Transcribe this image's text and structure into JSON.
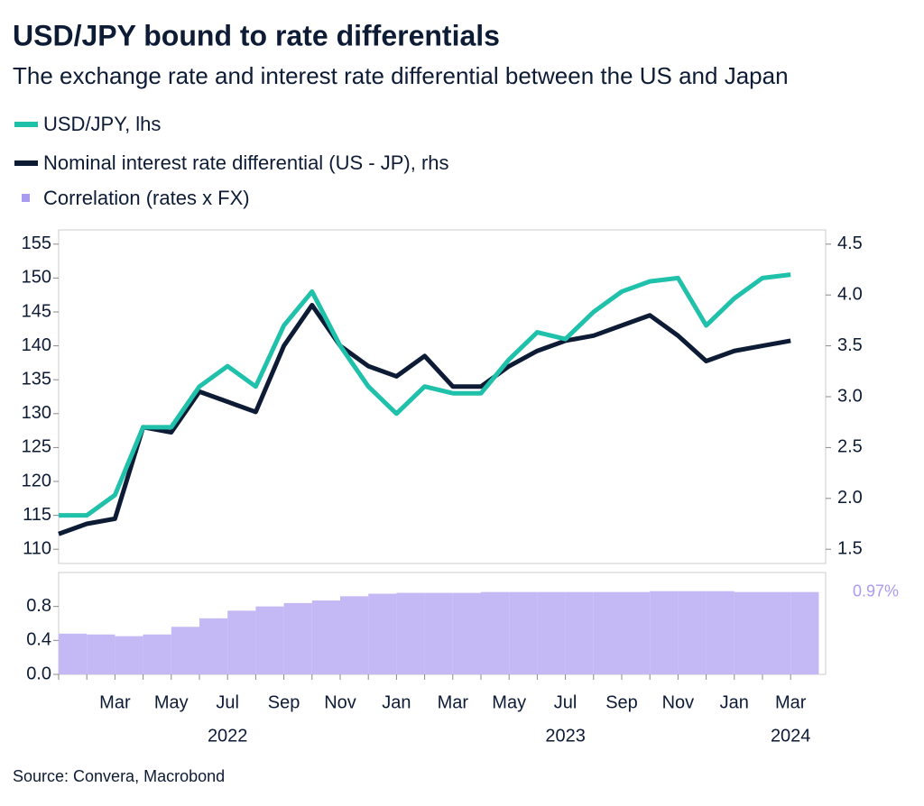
{
  "chart_data": [
    {
      "type": "line",
      "title": "USD/JPY bound to rate differentials",
      "subtitle": "The exchange rate and interest rate differential between the US and Japan",
      "x": [
        "2022-01",
        "2022-02",
        "2022-03",
        "2022-04",
        "2022-05",
        "2022-06",
        "2022-07",
        "2022-08",
        "2022-09",
        "2022-10",
        "2022-11",
        "2022-12",
        "2023-01",
        "2023-02",
        "2023-03",
        "2023-04",
        "2023-05",
        "2023-06",
        "2023-07",
        "2023-08",
        "2023-09",
        "2023-10",
        "2023-11",
        "2023-12",
        "2024-01",
        "2024-02",
        "2024-03"
      ],
      "series": [
        {
          "name": "USD/JPY, lhs",
          "color": "#1fc1aa",
          "axis": "y",
          "values": [
            115,
            115,
            118,
            128,
            128,
            134,
            137,
            134,
            143,
            148,
            140,
            134,
            130,
            134,
            133,
            133,
            138,
            142,
            141,
            145,
            148,
            149.5,
            150,
            143,
            147,
            150,
            150.5
          ]
        },
        {
          "name": "Nominal interest rate differential (US - JP), rhs",
          "color": "#0d1b35",
          "axis": "y2",
          "values": [
            1.65,
            1.75,
            1.8,
            2.7,
            2.65,
            3.05,
            2.95,
            2.85,
            3.5,
            3.9,
            3.5,
            3.3,
            3.2,
            3.4,
            3.1,
            3.1,
            3.3,
            3.45,
            3.55,
            3.6,
            3.7,
            3.8,
            3.6,
            3.35,
            3.45,
            3.5,
            3.55
          ]
        }
      ],
      "ylim": [
        107.9,
        157.1
      ],
      "yticks": [
        110,
        115,
        120,
        125,
        130,
        135,
        140,
        145,
        150,
        155
      ],
      "y2lim": [
        1.36,
        4.64
      ],
      "y2ticks": [
        1.5,
        {
          "value": 2,
          "label": "2.0"
        },
        2.5,
        {
          "value": 3,
          "label": "3.0"
        },
        3.5,
        {
          "value": 4,
          "label": "4.0"
        },
        4.5
      ]
    },
    {
      "type": "bar",
      "x": [
        "2022-01",
        "2022-02",
        "2022-03",
        "2022-04",
        "2022-05",
        "2022-06",
        "2022-07",
        "2022-08",
        "2022-09",
        "2022-10",
        "2022-11",
        "2022-12",
        "2023-01",
        "2023-02",
        "2023-03",
        "2023-04",
        "2023-05",
        "2023-06",
        "2023-07",
        "2023-08",
        "2023-09",
        "2023-10",
        "2023-11",
        "2023-12",
        "2024-01",
        "2024-02",
        "2024-03"
      ],
      "series": [
        {
          "name": "Correlation (rates x FX)",
          "color": "#c4b8f5",
          "values": [
            0.48,
            0.47,
            0.45,
            0.47,
            0.56,
            0.66,
            0.75,
            0.8,
            0.84,
            0.87,
            0.92,
            0.95,
            0.96,
            0.96,
            0.96,
            0.97,
            0.97,
            0.97,
            0.97,
            0.97,
            0.97,
            0.98,
            0.98,
            0.98,
            0.97,
            0.97,
            0.97
          ],
          "value_labels": [
            null,
            null,
            null,
            null,
            null,
            null,
            null,
            null,
            null,
            null,
            null,
            null,
            null,
            null,
            null,
            null,
            null,
            null,
            null,
            null,
            null,
            null,
            null,
            null,
            null,
            null,
            "0.97%"
          ]
        }
      ],
      "ylim": [
        0,
        1.2
      ],
      "yticks": [
        {
          "value": 0,
          "label": "0.0"
        },
        0.4,
        0.8
      ],
      "xticks": [
        {
          "value": "2022-03",
          "label": "Mar"
        },
        {
          "value": "2022-05",
          "label": "May"
        },
        {
          "value": "2022-07",
          "label": "Jul"
        },
        {
          "value": "2022-09",
          "label": "Sep"
        },
        {
          "value": "2022-11",
          "label": "Nov"
        },
        {
          "value": "2023-01",
          "label": "Jan"
        },
        {
          "value": "2023-03",
          "label": "Mar"
        },
        {
          "value": "2023-05",
          "label": "May"
        },
        {
          "value": "2023-07",
          "label": "Jul"
        },
        {
          "value": "2023-09",
          "label": "Sep"
        },
        {
          "value": "2023-11",
          "label": "Nov"
        },
        {
          "value": "2024-01",
          "label": "Jan"
        },
        {
          "value": "2024-03",
          "label": "Mar"
        }
      ],
      "year_labels": [
        {
          "value": "2022-07",
          "label": "2022"
        },
        {
          "value": "2023-07",
          "label": "2023"
        },
        {
          "value": "2024-03",
          "label": "2024"
        }
      ]
    }
  ],
  "source": "Source: Convera, Macrobond"
}
